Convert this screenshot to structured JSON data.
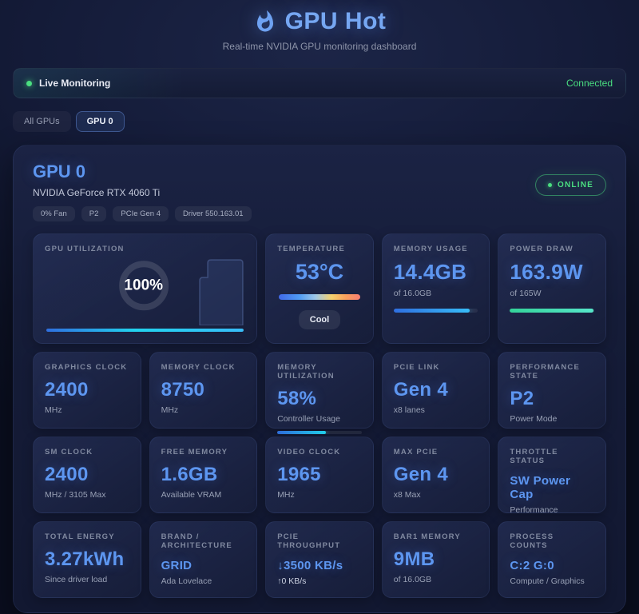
{
  "colors": {
    "accent_blue": "#5d96f0",
    "status_green": "#4ade80",
    "bar_cyan": "#22d3ee",
    "bar_blue": "#3b82f6"
  },
  "header": {
    "title": "GPU Hot",
    "subtitle": "Real-time NVIDIA GPU monitoring dashboard"
  },
  "status_bar": {
    "label": "Live Monitoring",
    "status": "Connected"
  },
  "tabs": {
    "all": "All GPUs",
    "gpu0": "GPU 0"
  },
  "gpu": {
    "name": "GPU 0",
    "model": "NVIDIA GeForce RTX 4060 Ti",
    "badges": [
      "0% Fan",
      "P2",
      "PCIe Gen 4",
      "Driver 550.163.01"
    ],
    "online": "ONLINE"
  },
  "hero": {
    "utilization": {
      "label": "GPU UTILIZATION",
      "value": "100%",
      "percent": 100
    },
    "temperature": {
      "label": "TEMPERATURE",
      "value": "53°C",
      "badge": "Cool"
    },
    "memory": {
      "label": "MEMORY USAGE",
      "value": "14.4GB",
      "sub": "of 16.0GB",
      "percent": 90
    },
    "power": {
      "label": "POWER DRAW",
      "value": "163.9W",
      "sub": "of 165W",
      "percent": 99
    }
  },
  "stats": [
    {
      "label": "GRAPHICS CLOCK",
      "value": "2400",
      "sub": "MHz"
    },
    {
      "label": "MEMORY CLOCK",
      "value": "8750",
      "sub": "MHz"
    },
    {
      "label": "MEMORY UTILIZATION",
      "value": "58%",
      "sub": "Controller Usage",
      "percent": 58
    },
    {
      "label": "PCIE LINK",
      "value": "Gen 4",
      "sub": "x8 lanes"
    },
    {
      "label": "PERFORMANCE STATE",
      "value": "P2",
      "sub": "Power Mode"
    },
    {
      "label": "SM CLOCK",
      "value": "2400",
      "sub": "MHz / 3105 Max"
    },
    {
      "label": "FREE MEMORY",
      "value": "1.6GB",
      "sub": "Available VRAM"
    },
    {
      "label": "VIDEO CLOCK",
      "value": "1965",
      "sub": "MHz"
    },
    {
      "label": "MAX PCIE",
      "value": "Gen 4",
      "sub": "x8 Max"
    },
    {
      "label": "THROTTLE STATUS",
      "value": "SW Power Cap",
      "sub": "Performance"
    },
    {
      "label": "TOTAL ENERGY",
      "value": "3.27kWh",
      "sub": "Since driver load"
    },
    {
      "label": "BRAND / ARCHITECTURE",
      "value": "GRID",
      "sub": "Ada Lovelace"
    },
    {
      "label": "PCIE THROUGHPUT",
      "value": "↓3500 KB/s",
      "sub": "↑0 KB/s"
    },
    {
      "label": "BAR1 MEMORY",
      "value": "9MB",
      "sub": "of 16.0GB"
    },
    {
      "label": "PROCESS COUNTS",
      "value": "C:2 G:0",
      "sub": "Compute / Graphics"
    }
  ]
}
